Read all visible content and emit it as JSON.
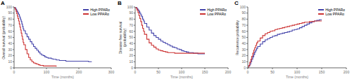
{
  "chart_data": [
    {
      "type": "step",
      "title": "A",
      "xlabel": "Time (months)",
      "ylabel": "Overall survival (probability)",
      "xlim": [
        0,
        300
      ],
      "ylim": [
        0,
        100
      ],
      "xticks": [
        0,
        100,
        200,
        300
      ],
      "yticks": [
        0,
        10,
        20,
        30,
        40,
        50,
        60,
        70,
        80,
        90,
        100
      ],
      "legend": "upper right",
      "grid": false,
      "series": [
        {
          "name": "High PPARα",
          "color": "#4444aa",
          "x": [
            0,
            2,
            4,
            6,
            8,
            10,
            12,
            14,
            16,
            18,
            20,
            22,
            24,
            26,
            28,
            30,
            35,
            40,
            45,
            50,
            55,
            60,
            65,
            70,
            75,
            80,
            85,
            90,
            95,
            100,
            105,
            110,
            115,
            120,
            125,
            130,
            135,
            140,
            150,
            160,
            170,
            180,
            190,
            200,
            210,
            220,
            230,
            240
          ],
          "values": [
            100,
            99,
            98,
            96,
            94,
            92,
            90,
            88,
            85,
            82,
            79,
            76,
            72,
            68,
            64,
            61,
            56,
            51,
            47,
            43,
            39,
            35,
            32,
            29,
            26,
            23,
            21,
            20,
            18,
            17,
            16,
            16,
            15,
            14,
            14,
            13,
            13,
            12,
            12,
            11,
            11,
            11,
            11,
            11,
            11,
            11,
            10,
            10
          ]
        },
        {
          "name": "Low PPARα",
          "color": "#cc3333",
          "x": [
            0,
            2,
            4,
            6,
            8,
            10,
            12,
            14,
            16,
            18,
            20,
            22,
            24,
            26,
            28,
            30,
            35,
            40,
            45,
            50,
            55,
            60,
            65,
            70,
            75,
            80,
            85,
            90,
            95,
            100,
            110,
            120,
            130
          ],
          "values": [
            100,
            98,
            96,
            93,
            89,
            85,
            81,
            77,
            72,
            67,
            62,
            57,
            52,
            47,
            42,
            38,
            30,
            23,
            17,
            13,
            10,
            8,
            7,
            6,
            5,
            4,
            4,
            3,
            3,
            3,
            3,
            3,
            2
          ]
        }
      ]
    },
    {
      "type": "step",
      "title": "B",
      "xlabel": "Time (months)",
      "ylabel": "Disease-free survival\n(probability)",
      "xlim": [
        0,
        200
      ],
      "ylim": [
        0,
        100
      ],
      "xticks": [
        0,
        50,
        100,
        150,
        200
      ],
      "yticks": [
        0,
        10,
        20,
        30,
        40,
        50,
        60,
        70,
        80,
        90,
        100
      ],
      "legend": "upper right",
      "grid": false,
      "series": [
        {
          "name": "High PPARα",
          "color": "#4444aa",
          "x": [
            0,
            2,
            4,
            6,
            8,
            10,
            12,
            14,
            16,
            18,
            20,
            25,
            30,
            35,
            40,
            45,
            50,
            55,
            60,
            65,
            70,
            75,
            80,
            85,
            90,
            95,
            100,
            105,
            110,
            115,
            120,
            125,
            130,
            135,
            140,
            145,
            150
          ],
          "values": [
            100,
            99,
            97,
            95,
            93,
            90,
            87,
            84,
            80,
            77,
            73,
            67,
            62,
            57,
            53,
            50,
            47,
            44,
            42,
            40,
            38,
            36,
            34,
            33,
            31,
            30,
            28,
            27,
            26,
            25,
            25,
            24,
            24,
            23,
            23,
            23,
            23
          ]
        },
        {
          "name": "Low PPARα",
          "color": "#cc3333",
          "x": [
            0,
            2,
            4,
            6,
            8,
            10,
            12,
            14,
            16,
            18,
            20,
            25,
            30,
            35,
            40,
            45,
            50,
            55,
            60,
            65,
            70,
            75,
            80,
            85,
            90,
            95,
            100,
            105,
            110,
            115,
            120,
            125,
            130,
            135,
            140,
            145,
            150
          ],
          "values": [
            100,
            98,
            95,
            91,
            86,
            81,
            76,
            70,
            65,
            60,
            55,
            47,
            41,
            37,
            34,
            31,
            29,
            28,
            27,
            26,
            25,
            25,
            25,
            24,
            24,
            24,
            24,
            24,
            24,
            24,
            24,
            24,
            24,
            24,
            24,
            24,
            24
          ]
        }
      ]
    },
    {
      "type": "step",
      "title": "C",
      "xlabel": "Time (months)",
      "ylabel": "Recurrence probability",
      "xlim": [
        0,
        200
      ],
      "ylim": [
        0,
        100
      ],
      "xticks": [
        0,
        50,
        100,
        150,
        200
      ],
      "yticks": [
        0,
        10,
        20,
        30,
        40,
        50,
        60,
        70,
        80,
        90,
        100
      ],
      "legend": "upper right",
      "grid": false,
      "series": [
        {
          "name": "High PPARα",
          "color": "#4444aa",
          "x": [
            0,
            2,
            4,
            6,
            8,
            10,
            12,
            14,
            16,
            18,
            20,
            25,
            30,
            35,
            40,
            45,
            50,
            55,
            60,
            65,
            70,
            75,
            80,
            85,
            90,
            95,
            100,
            105,
            110,
            115,
            120,
            125,
            130,
            135,
            140,
            145,
            150
          ],
          "values": [
            0,
            3,
            6,
            10,
            14,
            18,
            22,
            26,
            29,
            32,
            35,
            39,
            43,
            46,
            48,
            50,
            52,
            53,
            55,
            56,
            57,
            58,
            59,
            60,
            62,
            63,
            64,
            66,
            68,
            70,
            72,
            74,
            76,
            77,
            78,
            79,
            79
          ]
        },
        {
          "name": "Low PPARα",
          "color": "#cc3333",
          "x": [
            0,
            2,
            4,
            6,
            8,
            10,
            12,
            14,
            16,
            18,
            20,
            25,
            30,
            35,
            40,
            45,
            50,
            55,
            60,
            65,
            70,
            75,
            80,
            85,
            90,
            95,
            100,
            105,
            110,
            115,
            120,
            125,
            130,
            135,
            140,
            145,
            150
          ],
          "values": [
            0,
            4,
            9,
            14,
            19,
            24,
            29,
            33,
            37,
            41,
            44,
            49,
            53,
            56,
            58,
            60,
            61,
            63,
            64,
            65,
            66,
            67,
            68,
            69,
            70,
            71,
            72,
            73,
            74,
            75,
            75,
            76,
            76,
            77,
            77,
            77,
            77
          ]
        }
      ]
    }
  ]
}
